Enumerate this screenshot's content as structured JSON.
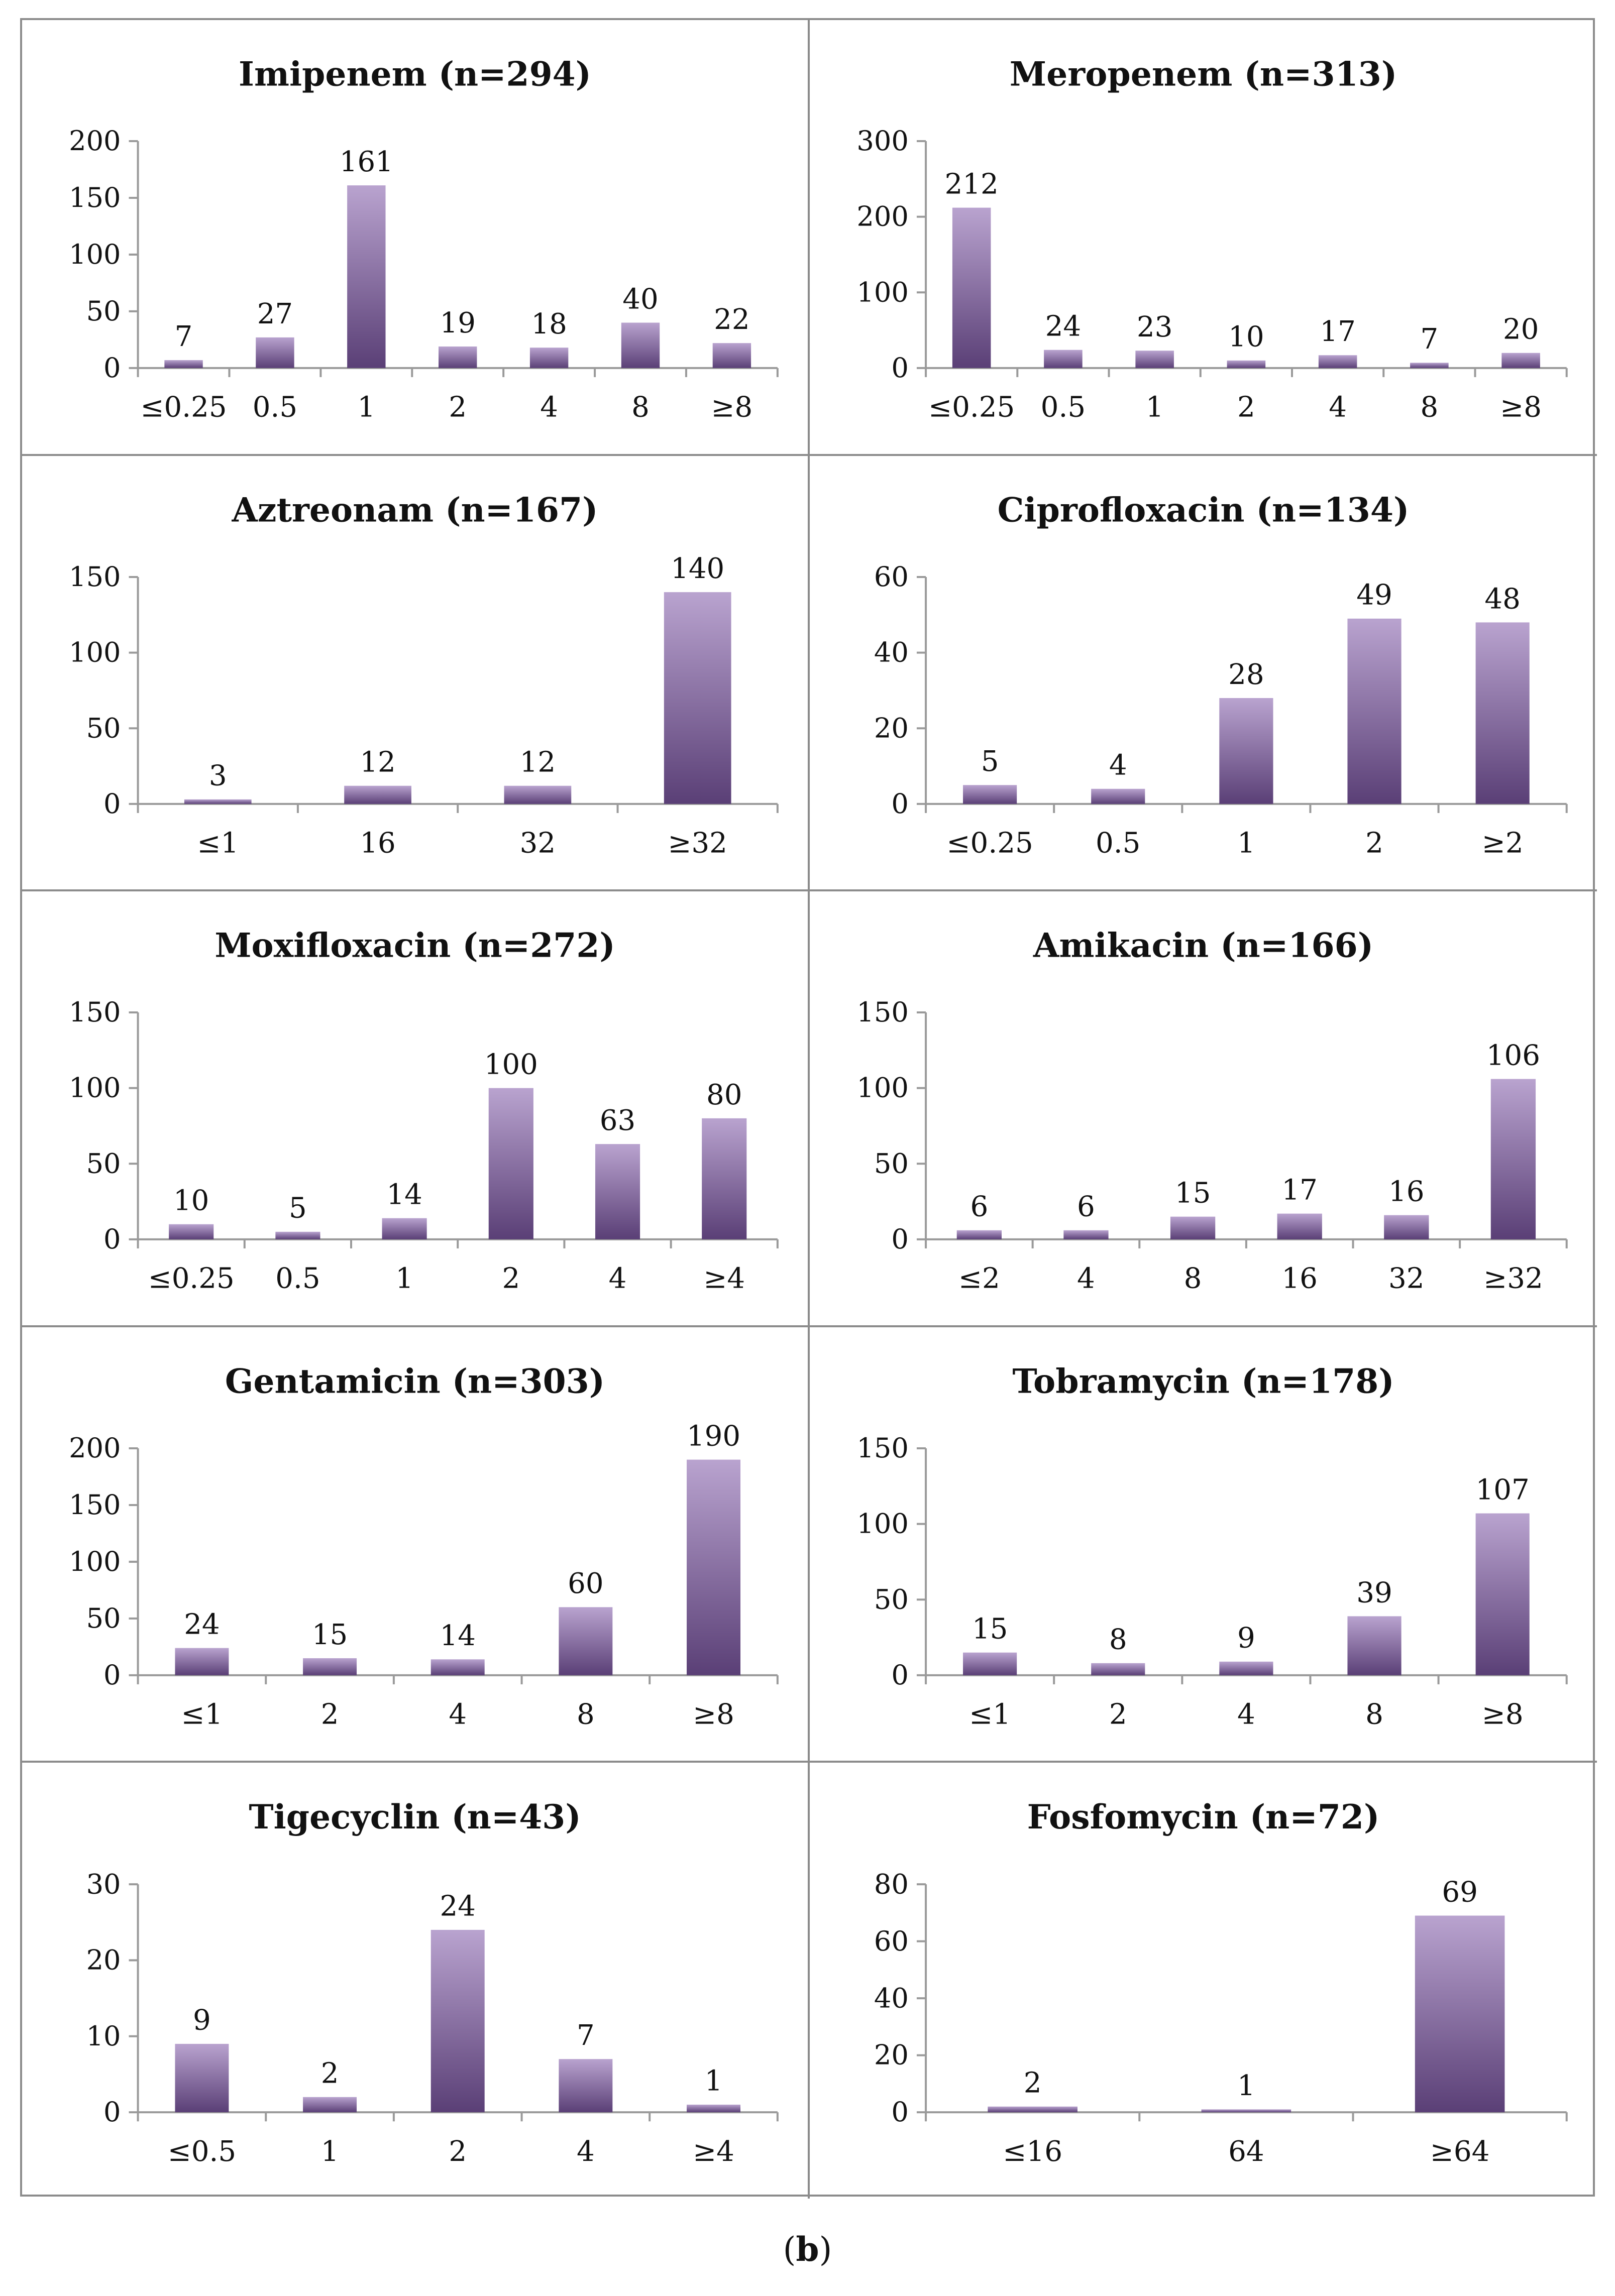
{
  "figure": {
    "caption_open": "(",
    "caption_label": "b",
    "caption_close": ")"
  },
  "colors": {
    "bar_top": "#b9a3cf",
    "bar_bottom": "#5a3f76",
    "axis": "#9a9a9a",
    "text": "#111111"
  },
  "chart_data": [
    {
      "type": "bar",
      "title": "Imipenem (n=294)",
      "categories": [
        "≤0.25",
        "0.5",
        "1",
        "2",
        "4",
        "8",
        "≥8"
      ],
      "values": [
        7,
        27,
        161,
        19,
        18,
        40,
        22
      ],
      "ylim": [
        0,
        200
      ],
      "yticks": [
        0,
        50,
        100,
        150,
        200
      ],
      "xlabel": "",
      "ylabel": ""
    },
    {
      "type": "bar",
      "title": "Meropenem (n=313)",
      "categories": [
        "≤0.25",
        "0.5",
        "1",
        "2",
        "4",
        "8",
        "≥8"
      ],
      "values": [
        212,
        24,
        23,
        10,
        17,
        7,
        20
      ],
      "ylim": [
        0,
        300
      ],
      "yticks": [
        0,
        100,
        200,
        300
      ],
      "xlabel": "",
      "ylabel": ""
    },
    {
      "type": "bar",
      "title": "Aztreonam (n=167)",
      "categories": [
        "≤1",
        "16",
        "32",
        "≥32"
      ],
      "values": [
        3,
        12,
        12,
        140
      ],
      "ylim": [
        0,
        150
      ],
      "yticks": [
        0,
        50,
        100,
        150
      ],
      "xlabel": "",
      "ylabel": ""
    },
    {
      "type": "bar",
      "title": "Ciprofloxacin (n=134)",
      "categories": [
        "≤0.25",
        "0.5",
        "1",
        "2",
        "≥2"
      ],
      "values": [
        5,
        4,
        28,
        49,
        48
      ],
      "ylim": [
        0,
        60
      ],
      "yticks": [
        0,
        20,
        40,
        60
      ],
      "xlabel": "",
      "ylabel": ""
    },
    {
      "type": "bar",
      "title": "Moxifloxacin (n=272)",
      "categories": [
        "≤0.25",
        "0.5",
        "1",
        "2",
        "4",
        "≥4"
      ],
      "values": [
        10,
        5,
        14,
        100,
        63,
        80
      ],
      "ylim": [
        0,
        150
      ],
      "yticks": [
        0,
        50,
        100,
        150
      ],
      "xlabel": "",
      "ylabel": ""
    },
    {
      "type": "bar",
      "title": "Amikacin (n=166)",
      "categories": [
        "≤2",
        "4",
        "8",
        "16",
        "32",
        "≥32"
      ],
      "values": [
        6,
        6,
        15,
        17,
        16,
        106
      ],
      "ylim": [
        0,
        150
      ],
      "yticks": [
        0,
        50,
        100,
        150
      ],
      "xlabel": "",
      "ylabel": ""
    },
    {
      "type": "bar",
      "title": "Gentamicin (n=303)",
      "categories": [
        "≤1",
        "2",
        "4",
        "8",
        "≥8"
      ],
      "values": [
        24,
        15,
        14,
        60,
        190
      ],
      "ylim": [
        0,
        200
      ],
      "yticks": [
        0,
        50,
        100,
        150,
        200
      ],
      "xlabel": "",
      "ylabel": ""
    },
    {
      "type": "bar",
      "title": "Tobramycin (n=178)",
      "categories": [
        "≤1",
        "2",
        "4",
        "8",
        "≥8"
      ],
      "values": [
        15,
        8,
        9,
        39,
        107
      ],
      "ylim": [
        0,
        150
      ],
      "yticks": [
        0,
        50,
        100,
        150
      ],
      "xlabel": "",
      "ylabel": ""
    },
    {
      "type": "bar",
      "title": "Tigecyclin (n=43)",
      "categories": [
        "≤0.5",
        "1",
        "2",
        "4",
        "≥4"
      ],
      "values": [
        9,
        2,
        24,
        7,
        1
      ],
      "ylim": [
        0,
        30
      ],
      "yticks": [
        0,
        10,
        20,
        30
      ],
      "xlabel": "",
      "ylabel": ""
    },
    {
      "type": "bar",
      "title": "Fosfomycin (n=72)",
      "categories": [
        "≤16",
        "64",
        "≥64"
      ],
      "values": [
        2,
        1,
        69
      ],
      "ylim": [
        0,
        80
      ],
      "yticks": [
        0,
        20,
        40,
        60,
        80
      ],
      "xlabel": "",
      "ylabel": ""
    }
  ]
}
